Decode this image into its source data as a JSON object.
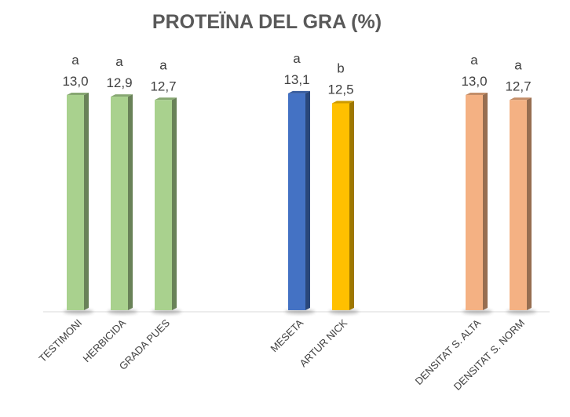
{
  "chart_data": {
    "type": "bar",
    "title": "PROTEÏNA DEL GRA (%)",
    "xlabel": "",
    "ylabel": "",
    "ylim": [
      0,
      13.5
    ],
    "grid": false,
    "legend": "none",
    "groups": [
      {
        "bars": [
          {
            "category": "TESTIMONI",
            "value": 13.0,
            "value_label": "13,0",
            "letter": "a",
            "color": "#a9d18e"
          },
          {
            "category": "HERBICIDA",
            "value": 12.9,
            "value_label": "12,9",
            "letter": "a",
            "color": "#a9d18e"
          },
          {
            "category": "GRADA PUES",
            "value": 12.7,
            "value_label": "12,7",
            "letter": "a",
            "color": "#a9d18e"
          }
        ]
      },
      {
        "bars": [
          {
            "category": "MESETA",
            "value": 13.1,
            "value_label": "13,1",
            "letter": "a",
            "color": "#4472c4"
          },
          {
            "category": "ARTUR NICK",
            "value": 12.5,
            "value_label": "12,5",
            "letter": "b",
            "color": "#ffc000"
          }
        ]
      },
      {
        "bars": [
          {
            "category": "DENSITAT S. ALTA",
            "value": 13.0,
            "value_label": "13,0",
            "letter": "a",
            "color": "#f4b183"
          },
          {
            "category": "DENSITAT S. NORM",
            "value": 12.7,
            "value_label": "12,7",
            "letter": "a",
            "color": "#f4b183"
          }
        ]
      }
    ]
  }
}
